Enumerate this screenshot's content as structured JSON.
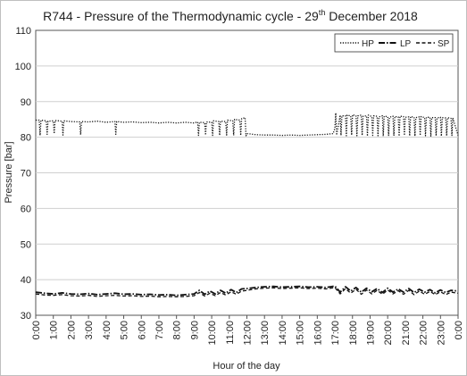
{
  "chart_data": {
    "type": "line",
    "title_main": "R744 - Pressure of the Thermodynamic cycle - 29",
    "title_sup": "th",
    "title_tail": " December 2018",
    "xlabel": "Hour of the day",
    "ylabel": "Pressure [bar]",
    "ylim": [
      30,
      110
    ],
    "yticks": [
      30,
      40,
      50,
      60,
      70,
      80,
      90,
      100,
      110
    ],
    "xlim": [
      0,
      24
    ],
    "xticks": [
      "0:00",
      "1:00",
      "2:00",
      "3:00",
      "4:00",
      "5:00",
      "6:00",
      "7:00",
      "8:00",
      "9:00",
      "10:00",
      "11:00",
      "12:00",
      "13:00",
      "14:00",
      "15:00",
      "16:00",
      "17:00",
      "18:00",
      "19:00",
      "20:00",
      "21:00",
      "22:00",
      "23:00",
      "0:00"
    ],
    "grid": "horizontal",
    "legend_position": "top-right",
    "series": [
      {
        "name": "HP",
        "style": "dotted",
        "x": [
          0.0,
          0.2,
          0.25,
          0.3,
          0.6,
          0.65,
          0.7,
          1.0,
          1.05,
          1.1,
          1.5,
          1.55,
          1.6,
          2.0,
          2.5,
          2.55,
          2.6,
          3.0,
          3.5,
          4.0,
          4.5,
          4.55,
          4.6,
          5.0,
          5.5,
          6.0,
          6.5,
          7.0,
          7.5,
          8.0,
          8.5,
          9.0,
          9.2,
          9.25,
          9.3,
          9.6,
          9.65,
          9.7,
          10.0,
          10.05,
          10.1,
          10.4,
          10.45,
          10.5,
          10.8,
          10.85,
          10.9,
          11.2,
          11.25,
          11.3,
          11.6,
          11.65,
          11.7,
          11.9,
          11.95,
          12.0,
          12.2,
          12.5,
          13.0,
          13.5,
          14.0,
          14.5,
          15.0,
          15.5,
          16.0,
          16.5,
          16.9,
          17.0,
          17.05,
          17.1,
          17.3,
          17.35,
          17.4,
          17.6,
          17.65,
          17.7,
          17.9,
          17.95,
          18.0,
          18.2,
          18.25,
          18.3,
          18.5,
          18.55,
          18.6,
          18.8,
          18.85,
          18.9,
          19.1,
          19.15,
          19.2,
          19.4,
          19.45,
          19.5,
          19.7,
          19.75,
          19.8,
          20.0,
          20.05,
          20.1,
          20.3,
          20.35,
          20.4,
          20.6,
          20.65,
          20.7,
          20.9,
          20.95,
          21.0,
          21.2,
          21.25,
          21.3,
          21.5,
          21.55,
          21.6,
          21.8,
          21.85,
          21.9,
          22.1,
          22.15,
          22.2,
          22.4,
          22.45,
          22.5,
          22.7,
          22.75,
          22.8,
          23.0,
          23.05,
          23.1,
          23.3,
          23.35,
          23.4,
          23.6,
          23.65,
          23.7,
          24.0
        ],
        "y": [
          84.8,
          84.8,
          80.5,
          84.8,
          84.6,
          80.8,
          84.5,
          84.6,
          81.0,
          84.7,
          84.5,
          80.6,
          84.6,
          84.4,
          84.3,
          80.7,
          84.4,
          84.3,
          84.5,
          84.2,
          84.4,
          80.8,
          84.4,
          84.2,
          84.3,
          84.1,
          84.2,
          84.0,
          84.2,
          84.0,
          84.2,
          84.0,
          84.3,
          80.5,
          84.2,
          84.1,
          80.6,
          84.3,
          84.2,
          80.5,
          84.6,
          84.4,
          80.5,
          84.5,
          84.4,
          80.6,
          84.8,
          84.6,
          80.5,
          85.0,
          84.8,
          80.5,
          85.2,
          85.5,
          80.4,
          81.0,
          80.9,
          80.7,
          80.6,
          80.6,
          80.5,
          80.6,
          80.5,
          80.6,
          80.7,
          80.8,
          81.0,
          82.5,
          86.8,
          80.6,
          86.2,
          80.5,
          86.0,
          86.0,
          80.4,
          86.2,
          86.0,
          80.6,
          86.3,
          86.0,
          80.4,
          86.0,
          86.2,
          80.5,
          85.9,
          86.0,
          80.3,
          86.2,
          85.8,
          80.5,
          86.0,
          85.9,
          80.4,
          85.7,
          86.0,
          80.3,
          85.9,
          85.8,
          80.5,
          85.6,
          85.9,
          80.4,
          85.8,
          85.7,
          80.3,
          85.9,
          85.8,
          80.5,
          85.6,
          85.7,
          80.4,
          85.8,
          85.6,
          80.3,
          85.5,
          85.7,
          80.5,
          85.8,
          85.5,
          80.4,
          85.6,
          85.6,
          80.3,
          85.5,
          85.5,
          80.4,
          85.4,
          85.6,
          80.3,
          85.5,
          85.4,
          80.4,
          85.5,
          85.3,
          80.5,
          85.4,
          80.5
        ]
      },
      {
        "name": "LP",
        "style": "dash-dot",
        "x": [
          0.0,
          0.5,
          1.0,
          1.5,
          2.0,
          2.5,
          3.0,
          3.5,
          4.0,
          4.5,
          5.0,
          5.5,
          6.0,
          6.5,
          7.0,
          7.5,
          8.0,
          8.5,
          9.0,
          9.3,
          9.6,
          9.9,
          10.2,
          10.5,
          10.8,
          11.1,
          11.4,
          11.7,
          12.0,
          12.5,
          13.0,
          13.5,
          14.0,
          14.5,
          15.0,
          15.5,
          16.0,
          16.5,
          17.0,
          17.3,
          17.6,
          17.9,
          18.2,
          18.5,
          18.8,
          19.1,
          19.4,
          19.7,
          20.0,
          20.3,
          20.6,
          20.9,
          21.2,
          21.5,
          21.8,
          22.1,
          22.4,
          22.7,
          23.0,
          23.3,
          23.6,
          24.0
        ],
        "y": [
          36.5,
          36.2,
          36.0,
          36.3,
          36.0,
          35.9,
          36.1,
          35.8,
          36.0,
          36.2,
          35.9,
          36.0,
          35.8,
          35.9,
          35.7,
          35.8,
          35.6,
          35.8,
          36.0,
          37.0,
          35.9,
          36.8,
          36.0,
          37.0,
          36.2,
          37.2,
          36.4,
          37.4,
          37.5,
          37.8,
          38.0,
          38.1,
          37.9,
          38.0,
          38.1,
          37.9,
          38.0,
          37.8,
          38.2,
          36.5,
          38.0,
          36.8,
          37.8,
          36.5,
          37.6,
          36.6,
          37.5,
          36.4,
          37.6,
          36.5,
          37.4,
          36.5,
          37.5,
          36.4,
          37.3,
          36.5,
          37.2,
          36.3,
          37.1,
          36.4,
          37.0,
          36.8
        ]
      },
      {
        "name": "SP",
        "style": "dashed",
        "x": [
          0.0,
          0.5,
          1.0,
          1.5,
          2.0,
          2.5,
          3.0,
          3.5,
          4.0,
          4.5,
          5.0,
          5.5,
          6.0,
          6.5,
          7.0,
          7.5,
          8.0,
          8.5,
          9.0,
          9.3,
          9.6,
          9.9,
          10.2,
          10.5,
          10.8,
          11.1,
          11.4,
          11.7,
          12.0,
          12.5,
          13.0,
          13.5,
          14.0,
          14.5,
          15.0,
          15.5,
          16.0,
          16.5,
          17.0,
          17.3,
          17.6,
          17.9,
          18.2,
          18.5,
          18.8,
          19.1,
          19.4,
          19.7,
          20.0,
          20.3,
          20.6,
          20.9,
          21.2,
          21.5,
          21.8,
          22.1,
          22.4,
          22.7,
          23.0,
          23.3,
          23.6,
          24.0
        ],
        "y": [
          36.0,
          35.7,
          35.6,
          35.8,
          35.5,
          35.4,
          35.6,
          35.3,
          35.5,
          35.6,
          35.4,
          35.5,
          35.3,
          35.4,
          35.2,
          35.3,
          35.2,
          35.3,
          35.5,
          36.4,
          35.4,
          36.2,
          35.5,
          36.4,
          35.7,
          36.6,
          35.9,
          36.8,
          37.0,
          37.4,
          37.6,
          37.7,
          37.5,
          37.6,
          37.7,
          37.5,
          37.6,
          37.4,
          37.8,
          36.0,
          37.5,
          36.2,
          37.3,
          35.9,
          37.1,
          36.0,
          37.0,
          35.9,
          37.1,
          36.0,
          36.9,
          35.9,
          37.0,
          35.8,
          36.8,
          35.9,
          36.7,
          35.8,
          36.6,
          35.8,
          36.5,
          36.2
        ]
      }
    ]
  }
}
